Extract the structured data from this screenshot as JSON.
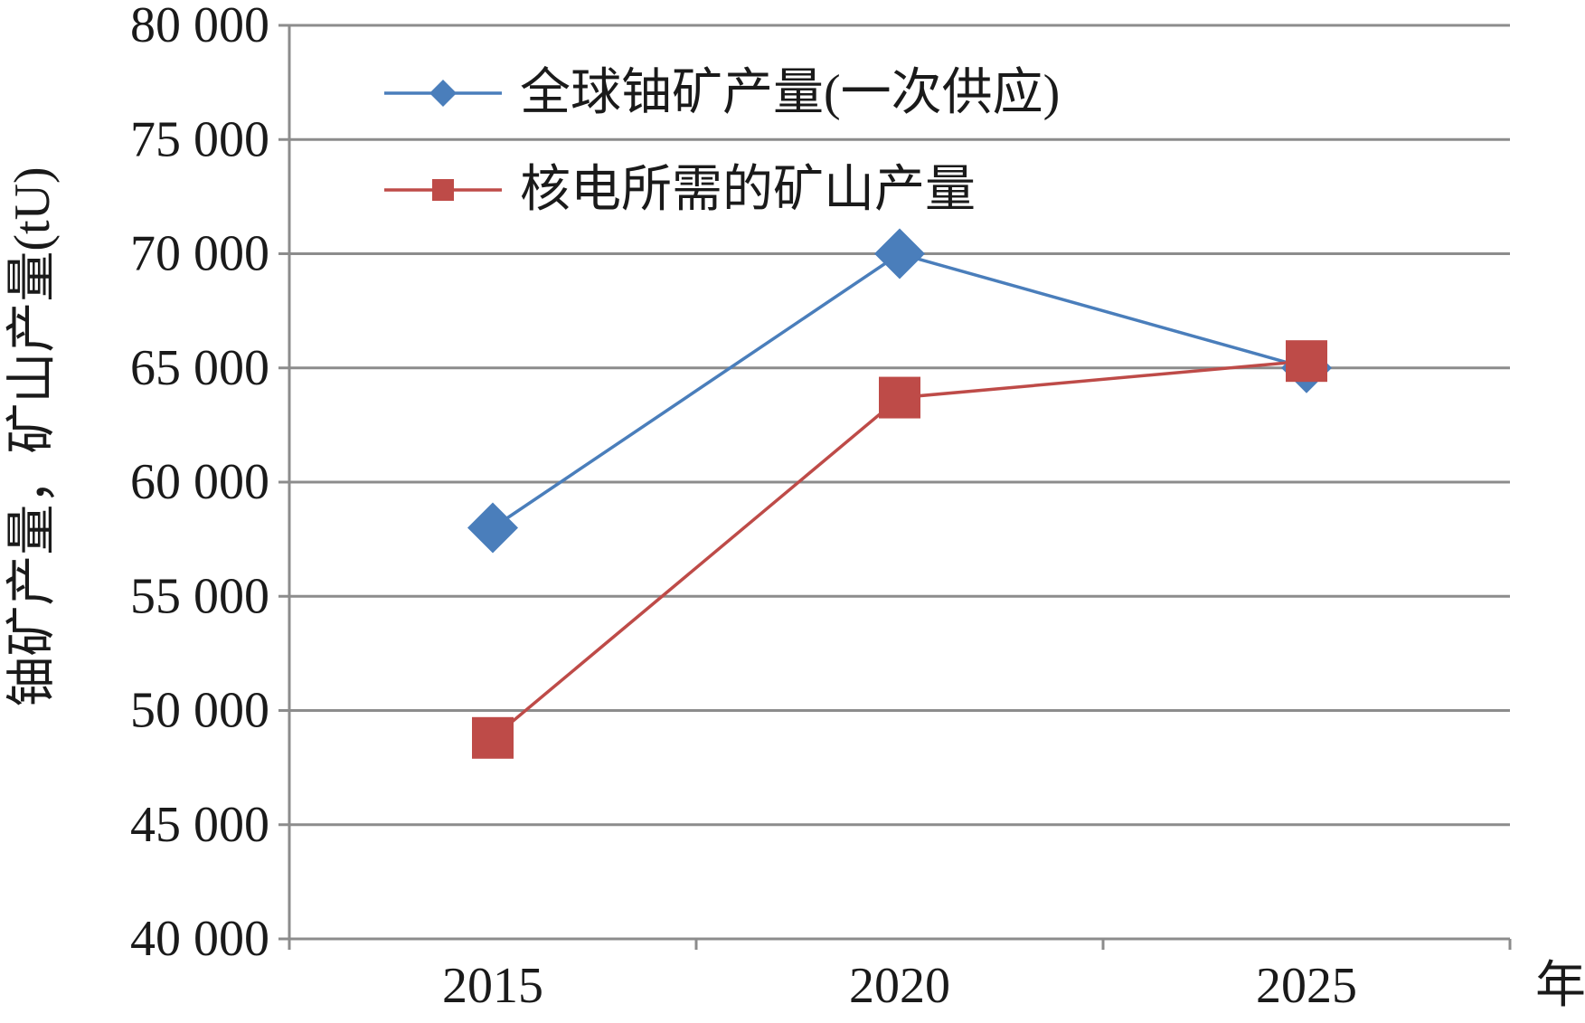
{
  "chart_data": {
    "type": "line",
    "categories": [
      "2015",
      "2020",
      "2025"
    ],
    "xlabel": "年",
    "ylabel": "铀矿产量，矿山产量(tU)",
    "ylim": [
      40000,
      80000
    ],
    "yticks": [
      40000,
      45000,
      50000,
      55000,
      60000,
      65000,
      70000,
      75000,
      80000
    ],
    "ytick_labels": [
      "40 000",
      "45 000",
      "50 000",
      "55 000",
      "60 000",
      "65 000",
      "70 000",
      "75 000",
      "80 000"
    ],
    "grid": true,
    "legend_position": "top-left",
    "series": [
      {
        "name": "全球铀矿产量(一次供应)",
        "values": [
          58000,
          70000,
          65000
        ],
        "color": "#4a7ebb",
        "marker": "diamond"
      },
      {
        "name": "核电所需的矿山产量",
        "values": [
          48800,
          63700,
          65300
        ],
        "color": "#be4b48",
        "marker": "square"
      }
    ]
  }
}
